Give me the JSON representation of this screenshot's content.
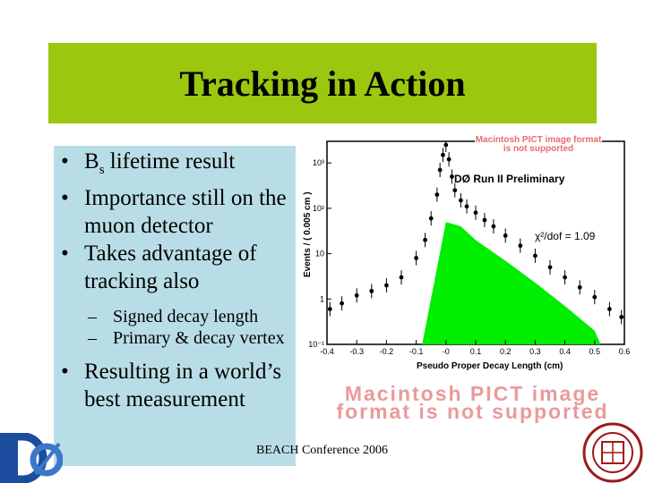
{
  "slide": {
    "title": "Tracking in Action",
    "bullets": [
      {
        "text": "B",
        "sub": "s",
        "rest": " lifetime result"
      },
      {
        "text": "Importance still on the muon detector"
      },
      {
        "text": "Takes advantage of tracking also"
      }
    ],
    "subbullets": [
      "Signed decay length",
      "Primary & decay vertex"
    ],
    "bullet_last": "Resulting in a world’s best measurement",
    "bullet_glyph": "•",
    "dash_glyph": "–",
    "footer": "BEACH Conference 2006",
    "pict_placeholder_small": "Macintosh PICT image format is not supported",
    "pict_placeholder_large": "Macintosh PICT image format is not supported"
  },
  "chart_data": {
    "type": "scatter",
    "title": "DØ Run II Preliminary",
    "xlabel": "Pseudo Proper Decay Length (cm)",
    "ylabel": "Events / ( 0.005 cm )",
    "x_ticks": [
      "-0.4",
      "-0.3",
      "-0.2",
      "-0.1",
      "-0",
      "0.1",
      "0.2",
      "0.3",
      "0.4",
      "0.5",
      "0.6"
    ],
    "y_ticks": [
      "10⁻¹",
      "1",
      "10",
      "10²",
      "10³"
    ],
    "xlim": [
      -0.4,
      0.6
    ],
    "ylog": true,
    "ylim": [
      0.1,
      3000
    ],
    "annotation": "χ²/dof = 1.09",
    "colors": {
      "signal": "#00ee00",
      "data": "#000000"
    },
    "signal_fill": {
      "x": [
        -0.08,
        0.0,
        0.05,
        0.1,
        0.2,
        0.3,
        0.4,
        0.5,
        0.52
      ],
      "y": [
        0.1,
        50,
        40,
        20,
        7,
        2.3,
        0.7,
        0.2,
        0.1
      ]
    },
    "data_points": {
      "x": [
        -0.39,
        -0.35,
        -0.3,
        -0.25,
        -0.2,
        -0.15,
        -0.1,
        -0.07,
        -0.05,
        -0.03,
        -0.02,
        -0.01,
        0.0,
        0.01,
        0.02,
        0.03,
        0.05,
        0.07,
        0.1,
        0.13,
        0.16,
        0.2,
        0.25,
        0.3,
        0.35,
        0.4,
        0.45,
        0.5,
        0.55,
        0.59
      ],
      "y": [
        0.6,
        0.8,
        1.2,
        1.5,
        2,
        3,
        8,
        20,
        60,
        200,
        700,
        1500,
        2500,
        1200,
        500,
        250,
        150,
        110,
        80,
        55,
        40,
        25,
        15,
        9,
        5,
        3,
        1.8,
        1.1,
        0.6,
        0.4
      ]
    }
  },
  "logos": {
    "left": "DØ",
    "right": "university-seal"
  }
}
